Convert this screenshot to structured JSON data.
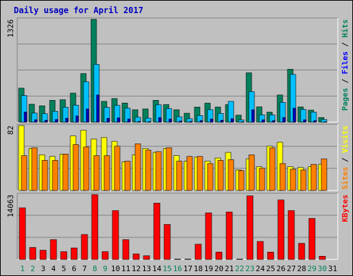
{
  "page": {
    "title": "Daily usage for April 2017"
  },
  "colors": {
    "pages": "#00805c",
    "files": "#00c0ff",
    "hits": "#00805c",
    "sites": "#ff8000",
    "visits": "#ffff00",
    "kbytes": "#ff0000",
    "title": "#0000c0",
    "background": "#c0c0c0",
    "axis_day_weekend": "#00805c",
    "axis_day_weekday": "#000000"
  },
  "chart_data": [
    {
      "type": "bar",
      "title": "Daily usage for April 2017",
      "ymax_label": "1326",
      "ylim": [
        0,
        1326
      ],
      "legend": [
        {
          "label": "Pages",
          "color": "#00805c"
        },
        {
          "label": "Files",
          "color": "#0000ff"
        },
        {
          "label": "Hits",
          "color": "#00805c"
        }
      ],
      "legend_separator": " / ",
      "categories": [
        "1",
        "2",
        "3",
        "4",
        "5",
        "6",
        "7",
        "8",
        "9",
        "10",
        "11",
        "12",
        "13",
        "14",
        "15",
        "16",
        "17",
        "18",
        "19",
        "20",
        "21",
        "22",
        "23",
        "24",
        "25",
        "26",
        "27",
        "28",
        "29",
        "30",
        "31"
      ],
      "series": [
        {
          "name": "Hits",
          "values": [
            438,
            231,
            210,
            281,
            289,
            374,
            626,
            1326,
            268,
            304,
            246,
            160,
            170,
            281,
            226,
            160,
            115,
            194,
            245,
            195,
            226,
            90,
            636,
            197,
            129,
            350,
            682,
            196,
            155,
            60,
            0
          ]
        },
        {
          "name": "Files",
          "values": [
            343,
            117,
            109,
            140,
            193,
            219,
            520,
            745,
            190,
            216,
            180,
            63,
            52,
            224,
            176,
            70,
            45,
            85,
            161,
            113,
            268,
            28,
            393,
            94,
            92,
            255,
            615,
            164,
            129,
            34,
            0
          ]
        },
        {
          "name": "Pages",
          "values": [
            130,
            30,
            25,
            35,
            50,
            80,
            170,
            350,
            50,
            55,
            40,
            10,
            8,
            60,
            40,
            15,
            10,
            20,
            40,
            25,
            45,
            5,
            160,
            30,
            20,
            60,
            180,
            30,
            20,
            5,
            0
          ]
        }
      ]
    },
    {
      "type": "bar",
      "ymax_label": "82",
      "ylim": [
        0,
        82
      ],
      "legend": [
        {
          "label": "Sites",
          "color": "#ff8000"
        },
        {
          "label": "Visits",
          "color": "#ffff00"
        }
      ],
      "legend_separator": " / ",
      "categories": [
        "1",
        "2",
        "3",
        "4",
        "5",
        "6",
        "7",
        "8",
        "9",
        "10",
        "11",
        "12",
        "13",
        "14",
        "15",
        "16",
        "17",
        "18",
        "19",
        "20",
        "21",
        "22",
        "23",
        "24",
        "25",
        "26",
        "27",
        "28",
        "29",
        "30",
        "31"
      ],
      "series": [
        {
          "name": "Visits",
          "values": [
            82,
            53,
            45,
            43,
            46,
            69,
            76,
            65,
            67,
            62,
            36,
            45,
            53,
            48,
            53,
            44,
            37,
            42,
            37,
            41,
            48,
            26,
            40,
            30,
            56,
            61,
            30,
            29,
            30,
            33,
            0
          ]
        },
        {
          "name": "Sites",
          "values": [
            44,
            54,
            38,
            38,
            46,
            58,
            55,
            44,
            44,
            56,
            37,
            59,
            51,
            49,
            54,
            37,
            43,
            43,
            34,
            38,
            39,
            25,
            45,
            28,
            54,
            34,
            27,
            26,
            33,
            40,
            0
          ]
        }
      ]
    },
    {
      "type": "bar",
      "ymax_label": "14063",
      "ylim": [
        0,
        14063
      ],
      "legend": [
        {
          "label": "KBytes",
          "color": "#ff0000"
        }
      ],
      "categories": [
        "1",
        "2",
        "3",
        "4",
        "5",
        "6",
        "7",
        "8",
        "9",
        "10",
        "11",
        "12",
        "13",
        "14",
        "15",
        "16",
        "17",
        "18",
        "19",
        "20",
        "21",
        "22",
        "23",
        "24",
        "25",
        "26",
        "27",
        "28",
        "29",
        "30",
        "31"
      ],
      "series": [
        {
          "name": "KBytes",
          "values": [
            11200,
            2600,
            2000,
            4300,
            1700,
            2500,
            5400,
            14063,
            1700,
            10600,
            4300,
            1200,
            800,
            12200,
            7600,
            80,
            80,
            3300,
            10100,
            1600,
            10300,
            80,
            13800,
            3900,
            1600,
            12900,
            10600,
            3500,
            8900,
            700,
            0
          ]
        }
      ]
    }
  ],
  "weekend_days": [
    1,
    2,
    8,
    9,
    15,
    16,
    22,
    23,
    29,
    30
  ]
}
